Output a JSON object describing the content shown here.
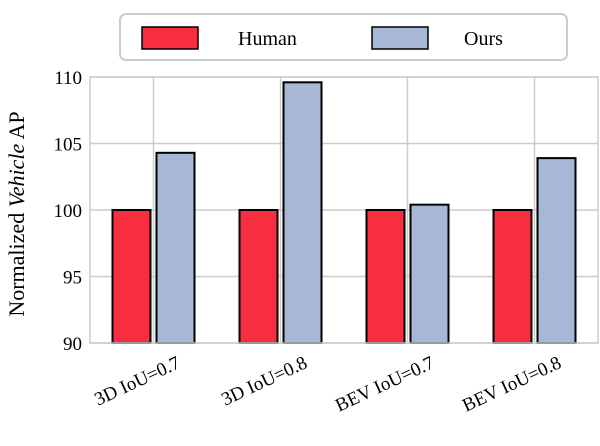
{
  "chart_data": {
    "type": "bar",
    "categories": [
      "3D IoU=0.7",
      "3D IoU=0.8",
      "BEV IoU=0.7",
      "BEV IoU=0.8"
    ],
    "series": [
      {
        "name": "Human",
        "values": [
          100,
          100,
          100,
          100
        ],
        "color": "#f72d40"
      },
      {
        "name": "Ours",
        "values": [
          104.3,
          109.6,
          100.4,
          103.9
        ],
        "color": "#a7b7d6"
      }
    ],
    "ylabel_prefix": "Normalized ",
    "ylabel_italic": "Vehicle",
    "ylabel_suffix": " AP",
    "ylim": [
      90,
      110
    ],
    "yticks": [
      90,
      95,
      100,
      105,
      110
    ],
    "grid": true,
    "legend_position": "top-center"
  }
}
